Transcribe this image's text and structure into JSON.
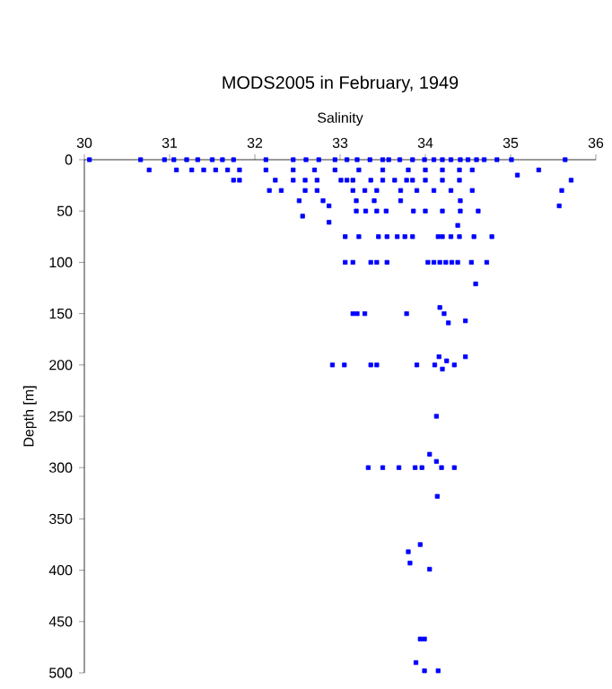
{
  "chart_data": {
    "type": "scatter",
    "title": "MODS2005 in February, 1949",
    "xlabel": "Salinity",
    "ylabel": "Depth [m]",
    "xlim": [
      30,
      36
    ],
    "xticks": [
      30,
      31,
      32,
      33,
      34,
      35,
      36
    ],
    "ylim": [
      500,
      0
    ],
    "yticks": [
      0,
      50,
      100,
      150,
      200,
      250,
      300,
      350,
      400,
      450,
      500
    ],
    "grid": false,
    "marker": "square",
    "series": [
      {
        "color": "#0000ff",
        "x": [
          30.06,
          30.66,
          30.94,
          31.05,
          31.2,
          31.33,
          31.5,
          31.62,
          31.75,
          32.13,
          32.45,
          32.6,
          32.75,
          32.94,
          33.08,
          33.2,
          33.35,
          33.5,
          33.57,
          33.7,
          33.85,
          33.99,
          34.1,
          34.2,
          34.3,
          34.41,
          34.5,
          34.6,
          34.69,
          34.84,
          35.01,
          35.64,
          30.76,
          31.08,
          31.26,
          31.4,
          31.54,
          31.68,
          31.82,
          32.13,
          32.45,
          32.7,
          32.94,
          33.22,
          33.5,
          33.8,
          34.0,
          34.2,
          34.4,
          34.55,
          35.33,
          31.75,
          31.82,
          32.24,
          32.45,
          32.59,
          32.73,
          33.01,
          33.08,
          33.15,
          33.36,
          33.5,
          33.64,
          33.78,
          33.85,
          34.0,
          34.2,
          34.4,
          35.71,
          35.08,
          32.17,
          32.31,
          32.59,
          32.73,
          33.15,
          33.29,
          33.43,
          33.71,
          33.9,
          34.1,
          34.3,
          34.55,
          35.6,
          32.52,
          32.8,
          33.19,
          33.4,
          33.71,
          34.41,
          34.62,
          32.56,
          32.87,
          33.19,
          33.3,
          33.43,
          33.54,
          33.86,
          34.0,
          34.2,
          34.41,
          35.57,
          32.87,
          34.38,
          33.06,
          33.22,
          33.45,
          33.55,
          33.67,
          33.76,
          33.85,
          34.15,
          34.2,
          34.3,
          34.4,
          34.57,
          34.78,
          33.06,
          33.15,
          33.36,
          33.43,
          33.55,
          34.03,
          34.1,
          34.17,
          34.24,
          34.31,
          34.38,
          34.54,
          34.72,
          34.59,
          33.15,
          33.2,
          33.29,
          33.78,
          34.17,
          34.22,
          34.27,
          34.47,
          32.91,
          33.05,
          33.36,
          33.43,
          33.9,
          34.11,
          34.16,
          34.2,
          34.34,
          34.47,
          34.25,
          34.13,
          34.05,
          34.13,
          33.33,
          33.5,
          33.69,
          33.88,
          33.96,
          34.19,
          34.34,
          34.14,
          33.94,
          33.8,
          33.82,
          34.05,
          33.94,
          33.99,
          33.89,
          33.99,
          34.15
        ],
        "values": [
          0,
          0,
          0,
          0,
          0,
          0,
          0,
          0,
          0,
          0,
          0,
          0,
          0,
          0,
          0,
          0,
          0,
          0,
          0,
          0,
          0,
          0,
          0,
          0,
          0,
          0,
          0,
          0,
          0,
          0,
          0,
          0,
          10,
          10,
          10,
          10,
          10,
          10,
          10,
          10,
          10,
          10,
          10,
          10,
          10,
          10,
          10,
          10,
          10,
          10,
          10,
          20,
          20,
          20,
          20,
          20,
          20,
          20,
          20,
          20,
          20,
          20,
          20,
          20,
          20,
          20,
          20,
          20,
          20,
          15,
          30,
          30,
          30,
          30,
          30,
          30,
          30,
          30,
          30,
          30,
          30,
          30,
          30,
          40,
          40,
          40,
          40,
          40,
          40,
          50,
          55,
          45,
          50,
          50,
          50,
          50,
          50,
          50,
          50,
          50,
          45,
          61,
          64,
          75,
          75,
          75,
          75,
          75,
          75,
          75,
          75,
          75,
          75,
          75,
          75,
          75,
          100,
          100,
          100,
          100,
          100,
          100,
          100,
          100,
          100,
          100,
          100,
          100,
          100,
          121,
          150,
          150,
          150,
          150,
          144,
          150,
          159,
          157,
          200,
          200,
          200,
          200,
          200,
          200,
          192,
          204,
          200,
          192,
          196,
          250,
          287,
          294,
          300,
          300,
          300,
          300,
          300,
          300,
          300,
          328,
          375,
          382,
          393,
          399,
          467,
          467,
          490,
          498,
          498
        ]
      }
    ]
  }
}
